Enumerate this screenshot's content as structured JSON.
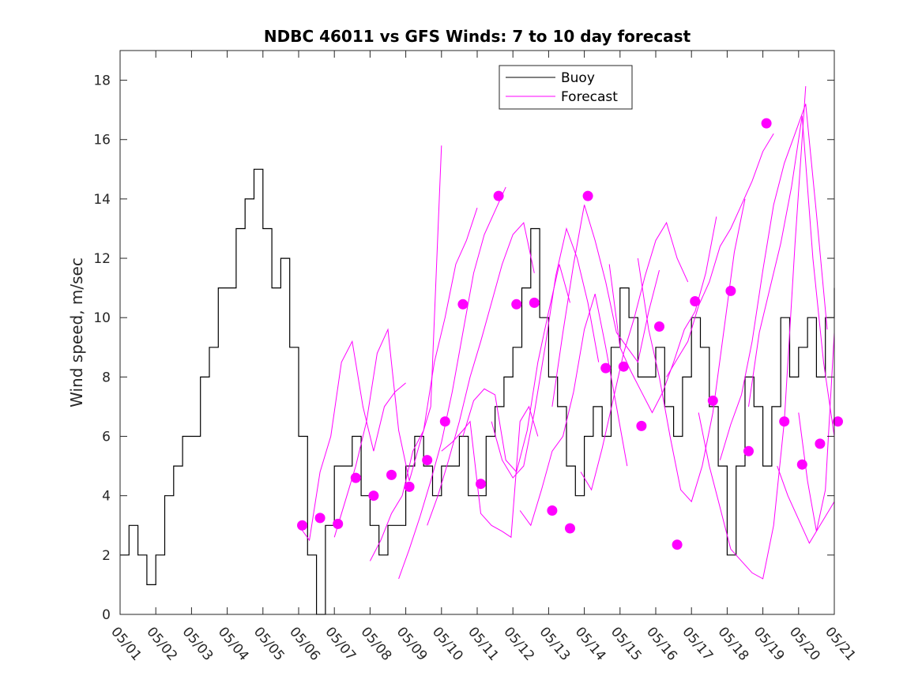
{
  "chart_data": {
    "type": "line",
    "title": "NDBC 46011 vs GFS Winds: 7 to 10 day forecast",
    "xlabel": "",
    "ylabel": "Wind speed, m/sec",
    "xlim": [
      "05/01",
      "05/21"
    ],
    "ylim": [
      0,
      19
    ],
    "x_ticks": [
      "05/01",
      "05/02",
      "05/03",
      "05/04",
      "05/05",
      "05/06",
      "05/07",
      "05/08",
      "05/09",
      "05/10",
      "05/11",
      "05/12",
      "05/13",
      "05/14",
      "05/15",
      "05/16",
      "05/17",
      "05/18",
      "05/19",
      "05/20",
      "05/21"
    ],
    "y_ticks": [
      0,
      2,
      4,
      6,
      8,
      10,
      12,
      14,
      16,
      18
    ],
    "legend": {
      "placement": "top-center",
      "entries": [
        "Buoy",
        "Forecast"
      ]
    },
    "colors": {
      "buoy": "#000000",
      "forecast": "#ff00ff"
    },
    "series": [
      {
        "name": "Buoy",
        "x_day": [
          0.0,
          0.25,
          0.5,
          0.75,
          1.0,
          1.25,
          1.5,
          1.75,
          2.0,
          2.25,
          2.5,
          2.75,
          3.0,
          3.25,
          3.5,
          3.75,
          4.0,
          4.25,
          4.5,
          4.75,
          5.0,
          5.25,
          5.5,
          5.75,
          6.0,
          6.25,
          6.5,
          6.75,
          7.0,
          7.25,
          7.5,
          7.75,
          8.0,
          8.25,
          8.5,
          8.75,
          9.0,
          9.25,
          9.5,
          9.75,
          10.0,
          10.25,
          10.5,
          10.75,
          11.0,
          11.25,
          11.5,
          11.75,
          12.0,
          12.25,
          12.5,
          12.75,
          13.0,
          13.25,
          13.5,
          13.75,
          14.0,
          14.25,
          14.5,
          14.75,
          15.0,
          15.25,
          15.5,
          15.75,
          16.0,
          16.25,
          16.5,
          16.75,
          17.0,
          17.25,
          17.5,
          17.75,
          18.0,
          18.25,
          18.5,
          18.75,
          19.0,
          19.25,
          19.5,
          19.75,
          20.0
        ],
        "values": [
          2,
          3,
          2,
          1,
          2,
          4,
          5,
          6,
          6,
          8,
          9,
          11,
          11,
          13,
          14,
          15,
          13,
          11,
          12,
          9,
          6,
          2,
          0,
          3,
          5,
          5,
          6,
          4,
          3,
          2,
          3,
          3,
          5,
          6,
          5,
          4,
          5,
          5,
          6,
          4,
          4,
          6,
          7,
          8,
          9,
          11,
          13,
          10,
          8,
          7,
          5,
          4,
          6,
          7,
          6,
          9,
          11,
          10,
          8,
          8,
          9,
          7,
          6,
          8,
          10,
          9,
          7,
          5,
          2,
          5,
          8,
          7,
          5,
          7,
          10,
          8,
          9,
          10,
          8,
          10,
          11
        ]
      },
      {
        "name": "Forecast",
        "lines": [
          {
            "x_day": [
              5.0,
              5.3,
              5.6,
              5.9,
              6.2,
              6.5,
              6.8,
              7.1,
              7.4,
              7.7,
              8.0
            ],
            "values": [
              3.0,
              2.5,
              4.8,
              6.0,
              8.5,
              9.2,
              7.0,
              5.5,
              7.0,
              7.5,
              7.8
            ]
          },
          {
            "x_day": [
              6.0,
              6.3,
              6.6,
              6.9,
              7.2,
              7.5,
              7.8,
              8.1,
              8.4,
              8.7,
              9.0
            ],
            "values": [
              2.6,
              3.8,
              5.0,
              6.5,
              8.8,
              9.6,
              6.2,
              4.5,
              5.8,
              7.0,
              15.8
            ]
          },
          {
            "x_day": [
              7.0,
              7.3,
              7.6,
              7.9,
              8.2,
              8.5,
              8.8,
              9.1,
              9.4,
              9.7,
              10.0
            ],
            "values": [
              1.8,
              2.5,
              3.4,
              4.0,
              5.5,
              6.2,
              8.5,
              10.0,
              11.8,
              12.6,
              13.7
            ]
          },
          {
            "x_day": [
              7.8,
              8.1,
              8.4,
              8.7,
              9.0,
              9.3,
              9.6,
              9.9,
              10.2,
              10.5,
              10.8
            ],
            "values": [
              1.2,
              2.2,
              3.3,
              4.5,
              5.8,
              7.5,
              9.5,
              11.5,
              12.8,
              13.6,
              14.4
            ]
          },
          {
            "x_day": [
              8.6,
              8.9,
              9.2,
              9.5,
              9.8,
              10.1,
              10.4,
              10.7,
              11.0,
              11.3,
              11.6
            ],
            "values": [
              3.0,
              4.0,
              5.2,
              6.5,
              8.0,
              9.2,
              10.5,
              11.8,
              12.8,
              13.2,
              11.5
            ]
          },
          {
            "x_day": [
              9.0,
              9.3,
              9.6,
              9.8,
              10.1,
              10.4,
              10.7,
              10.95,
              11.2,
              11.45,
              11.7
            ],
            "values": [
              5.5,
              5.8,
              6.2,
              6.5,
              3.4,
              3.0,
              2.8,
              2.6,
              6.5,
              7.0,
              6.0
            ]
          },
          {
            "x_day": [
              9.6,
              9.9,
              10.2,
              10.5,
              10.8,
              11.1,
              11.4,
              11.7,
              12.0,
              12.3,
              12.6
            ],
            "values": [
              6.0,
              7.2,
              7.6,
              7.4,
              5.2,
              4.8,
              6.2,
              8.5,
              10.2,
              11.8,
              10.5
            ]
          },
          {
            "x_day": [
              10.4,
              10.7,
              11.0,
              11.3,
              11.6,
              11.9,
              12.2,
              12.5,
              12.8,
              13.1,
              13.4
            ],
            "values": [
              6.5,
              5.2,
              4.6,
              5.0,
              6.8,
              9.0,
              11.4,
              13.0,
              12.0,
              10.5,
              8.5
            ]
          },
          {
            "x_day": [
              11.2,
              11.5,
              11.8,
              12.1,
              12.4,
              12.7,
              13.0,
              13.3,
              13.6,
              13.9,
              14.2
            ],
            "values": [
              3.5,
              3.0,
              4.2,
              5.5,
              6.0,
              7.5,
              9.6,
              10.8,
              9.0,
              7.0,
              5.0
            ]
          },
          {
            "x_day": [
              12.1,
              12.4,
              12.7,
              13.0,
              13.3,
              13.6,
              13.9,
              14.2,
              14.5,
              14.8,
              15.1
            ],
            "values": [
              7.0,
              9.5,
              11.8,
              13.8,
              12.6,
              11.2,
              9.5,
              9.0,
              8.5,
              10.2,
              11.6
            ]
          },
          {
            "x_day": [
              12.9,
              13.2,
              13.5,
              13.8,
              14.1,
              14.4,
              14.7,
              15.0,
              15.3,
              15.6,
              15.9
            ],
            "values": [
              4.8,
              4.2,
              5.6,
              7.2,
              8.8,
              10.0,
              11.4,
              12.6,
              13.2,
              12.0,
              11.2
            ]
          },
          {
            "x_day": [
              13.7,
              14.0,
              14.3,
              14.6,
              14.9,
              15.2,
              15.5,
              15.8,
              16.1,
              16.4,
              16.7
            ],
            "values": [
              11.8,
              9.0,
              8.2,
              7.5,
              6.8,
              7.5,
              8.5,
              9.6,
              10.2,
              11.5,
              13.4
            ]
          },
          {
            "x_day": [
              14.5,
              14.8,
              15.1,
              15.4,
              15.7,
              16.0,
              16.3,
              16.6,
              16.9,
              17.2,
              17.5
            ],
            "values": [
              12.0,
              9.6,
              8.0,
              6.0,
              4.2,
              3.8,
              5.0,
              6.8,
              9.5,
              12.2,
              14.0
            ]
          },
          {
            "x_day": [
              15.3,
              15.6,
              15.9,
              16.2,
              16.5,
              16.8,
              17.1,
              17.4,
              17.7,
              18.0,
              18.3
            ],
            "values": [
              8.0,
              8.6,
              9.2,
              10.4,
              11.2,
              12.4,
              13.0,
              13.8,
              14.6,
              15.6,
              16.2
            ]
          },
          {
            "x_day": [
              16.2,
              16.5,
              16.8,
              17.1,
              17.4,
              17.7,
              18.0,
              18.3,
              18.6,
              18.9,
              19.2
            ],
            "values": [
              6.8,
              5.0,
              3.6,
              2.2,
              1.8,
              1.4,
              1.2,
              3.0,
              6.5,
              12.5,
              17.8
            ]
          },
          {
            "x_day": [
              16.8,
              17.1,
              17.4,
              17.7,
              18.0,
              18.3,
              18.6,
              18.9,
              19.2,
              19.5,
              19.8
            ],
            "values": [
              5.2,
              6.4,
              7.4,
              9.2,
              11.6,
              13.8,
              15.2,
              16.2,
              17.2,
              13.5,
              9.6
            ]
          },
          {
            "x_day": [
              17.6,
              17.9,
              18.2,
              18.5,
              18.8,
              19.1,
              19.4,
              19.7,
              20.0
            ],
            "values": [
              7.0,
              9.5,
              11.0,
              12.5,
              14.4,
              16.8,
              12.0,
              8.5,
              6.0
            ]
          },
          {
            "x_day": [
              18.4,
              18.7,
              19.0,
              19.3,
              19.6,
              19.9,
              20.0
            ],
            "values": [
              5.0,
              4.0,
              3.2,
              2.4,
              3.0,
              3.6,
              3.8
            ]
          },
          {
            "x_day": [
              19.0,
              19.25,
              19.5,
              19.75,
              20.0
            ],
            "values": [
              6.8,
              4.5,
              2.8,
              4.2,
              9.5
            ]
          }
        ],
        "marker_x_day": [
          5.1,
          5.6,
          6.1,
          6.6,
          7.1,
          7.6,
          8.1,
          8.6,
          9.1,
          9.6,
          10.1,
          10.6,
          11.1,
          11.6,
          12.1,
          12.6,
          13.1,
          13.6,
          14.1,
          14.6,
          15.1,
          15.6,
          16.1,
          16.6,
          17.1,
          17.6,
          18.1,
          18.6,
          19.1,
          19.6,
          20.1
        ],
        "marker_values": [
          3.0,
          3.25,
          3.05,
          4.6,
          4.0,
          4.7,
          4.3,
          5.2,
          6.5,
          10.45,
          4.4,
          14.1,
          10.45,
          10.5,
          3.5,
          2.9,
          14.1,
          8.3,
          8.35,
          6.35,
          9.7,
          2.35,
          10.55,
          7.2,
          10.9,
          5.5,
          16.55,
          6.5,
          5.05,
          5.75,
          6.5
        ]
      }
    ]
  }
}
